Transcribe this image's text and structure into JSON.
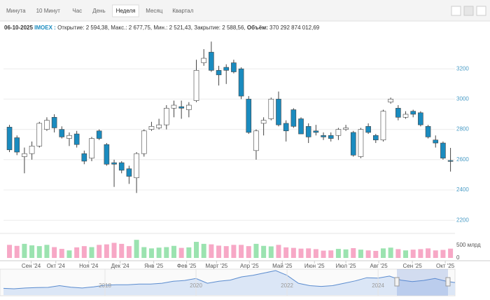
{
  "toolbar": {
    "tabs": [
      {
        "label": "Минута"
      },
      {
        "label": "10 Минут"
      },
      {
        "label": "Час"
      },
      {
        "label": "День"
      },
      {
        "label": "Неделя",
        "active": true
      },
      {
        "label": "Месяц"
      },
      {
        "label": "Квартал"
      }
    ]
  },
  "info": {
    "date": "06-10-2025",
    "ticker": "IMOEX :",
    "separator": ",",
    "items": [
      {
        "label": "Открытие:",
        "value": "2 594,38"
      },
      {
        "label": "Макс.:",
        "value": "2 677,75"
      },
      {
        "label": "Мин.:",
        "value": "2 521,43"
      },
      {
        "label": "Закрытие:",
        "value": "2 588,56"
      },
      {
        "label": "Объём:",
        "value": "370 292 874 012,69"
      }
    ]
  },
  "chart_data": [
    {
      "type": "candlestick",
      "up_color": "#ffffff",
      "down_color": "#1a8bbf",
      "outline_color": "#444444",
      "grid": true,
      "xlim": [
        -0.8,
        59.6
      ],
      "ylim": [
        2150,
        3400
      ],
      "yticks": [
        2200,
        2400,
        2600,
        2800,
        3000,
        3200
      ],
      "xticks": [
        {
          "value": 2.9,
          "label": "Сен '24"
        },
        {
          "value": 6.2,
          "label": "Окт '24"
        },
        {
          "value": 10.6,
          "label": "Ноя '24"
        },
        {
          "value": 14.8,
          "label": "Дек '24"
        },
        {
          "value": 19.3,
          "label": "Янв '25"
        },
        {
          "value": 23.7,
          "label": "Фев '25"
        },
        {
          "value": 27.7,
          "label": "Март '25"
        },
        {
          "value": 32.1,
          "label": "Апр '25"
        },
        {
          "value": 36.5,
          "label": "Май '25"
        },
        {
          "value": 40.8,
          "label": "Июн '25"
        },
        {
          "value": 45.0,
          "label": "Июл '25"
        },
        {
          "value": 49.4,
          "label": "Авг '25"
        },
        {
          "value": 53.9,
          "label": "Сен '25"
        },
        {
          "value": 58.3,
          "label": "Окт '25"
        }
      ],
      "open": [
        2815,
        2745,
        2620,
        2640,
        2690,
        2800,
        2880,
        2800,
        2740,
        2770,
        2640,
        2610,
        2790,
        2700,
        2580,
        2580,
        2540,
        2480,
        2640,
        2800,
        2810,
        2830,
        2940,
        2950,
        2930,
        2990,
        3240,
        3310,
        3190,
        3210,
        3240,
        3200,
        3000,
        2660,
        2840,
        2870,
        3000,
        2840,
        2930,
        2870,
        2820,
        2790,
        2760,
        2760,
        2760,
        2800,
        2780,
        2620,
        2820,
        2760,
        2730,
        2980,
        2940,
        2880,
        2920,
        2910,
        2820,
        2730,
        2710,
        2594.38
      ],
      "high": [
        2830,
        2760,
        2680,
        2720,
        2850,
        2880,
        2900,
        2820,
        2780,
        2790,
        2660,
        2750,
        2800,
        2710,
        2600,
        2590,
        2560,
        2650,
        2800,
        2850,
        2870,
        2960,
        2990,
        2990,
        2980,
        3260,
        3330,
        3380,
        3220,
        3230,
        3260,
        3210,
        3020,
        2800,
        2880,
        3010,
        3050,
        2860,
        2940,
        2880,
        2840,
        2830,
        2780,
        2780,
        2810,
        2830,
        2790,
        2810,
        2840,
        2770,
        2930,
        3010,
        2960,
        2920,
        2930,
        2920,
        2830,
        2760,
        2720,
        2677.75
      ],
      "low": [
        2650,
        2630,
        2510,
        2600,
        2680,
        2790,
        2780,
        2740,
        2690,
        2680,
        2570,
        2590,
        2730,
        2560,
        2420,
        2510,
        2440,
        2380,
        2620,
        2790,
        2800,
        2800,
        2880,
        2870,
        2880,
        2980,
        3220,
        3180,
        3090,
        3100,
        3170,
        3000,
        2770,
        2600,
        2760,
        2860,
        2820,
        2720,
        2810,
        2770,
        2710,
        2760,
        2730,
        2720,
        2730,
        2790,
        2620,
        2610,
        2770,
        2710,
        2720,
        2970,
        2860,
        2870,
        2880,
        2820,
        2740,
        2680,
        2600,
        2521.43
      ],
      "close": [
        2665,
        2650,
        2640,
        2690,
        2840,
        2860,
        2810,
        2750,
        2760,
        2700,
        2590,
        2740,
        2740,
        2570,
        2570,
        2530,
        2490,
        2640,
        2790,
        2820,
        2830,
        2940,
        2960,
        2940,
        2960,
        3190,
        3270,
        3190,
        3160,
        3190,
        3180,
        3020,
        2780,
        2790,
        2860,
        3000,
        2830,
        2790,
        2820,
        2770,
        2750,
        2780,
        2750,
        2740,
        2800,
        2810,
        2630,
        2800,
        2780,
        2730,
        2920,
        3000,
        2880,
        2900,
        2900,
        2830,
        2750,
        2710,
        2610,
        2588.56
      ]
    },
    {
      "type": "bar",
      "up_color": "#9be3b0",
      "down_color": "#f7a8c6",
      "ylim": [
        0,
        780
      ],
      "yticks": [
        {
          "value": 500,
          "label": "500 млрд"
        },
        0
      ],
      "values": [
        520,
        480,
        560,
        500,
        470,
        520,
        430,
        360,
        300,
        420,
        470,
        430,
        520,
        540,
        600,
        560,
        470,
        720,
        430,
        380,
        410,
        430,
        480,
        400,
        420,
        640,
        560,
        540,
        490,
        470,
        520,
        520,
        470,
        560,
        480,
        460,
        520,
        420,
        400,
        370,
        380,
        350,
        290,
        300,
        360,
        340,
        390,
        330,
        300,
        280,
        380,
        410,
        350,
        300,
        330,
        350,
        380,
        300,
        320,
        370.29
      ]
    },
    {
      "type": "line",
      "color": "#5b8ccf",
      "fill": "#dbe6f6",
      "xlim": [
        2015.77,
        2025.69
      ],
      "xticks": [
        2018,
        2020,
        2022,
        2024
      ],
      "x": [
        2015.75,
        2016,
        2016.25,
        2016.5,
        2016.75,
        2017,
        2017.25,
        2017.5,
        2017.75,
        2018,
        2018.25,
        2018.5,
        2018.75,
        2019,
        2019.25,
        2019.5,
        2019.75,
        2020,
        2020.25,
        2020.5,
        2020.75,
        2021,
        2021.25,
        2021.5,
        2021.75,
        2022,
        2022.25,
        2022.5,
        2022.75,
        2023,
        2023.25,
        2023.5,
        2023.75,
        2024,
        2024.25,
        2024.5,
        2024.75,
        2025,
        2025.25,
        2025.5,
        2025.69
      ],
      "values": [
        1850,
        1800,
        1900,
        1950,
        1980,
        2200,
        2000,
        1900,
        2050,
        2250,
        2300,
        2300,
        2400,
        2400,
        2500,
        2750,
        2850,
        3100,
        2500,
        2750,
        2900,
        3300,
        3500,
        3800,
        4100,
        3500,
        2500,
        2200,
        2100,
        2200,
        2500,
        2800,
        3200,
        3150,
        3400,
        2900,
        2700,
        2850,
        3100,
        2750,
        2590
      ]
    }
  ]
}
